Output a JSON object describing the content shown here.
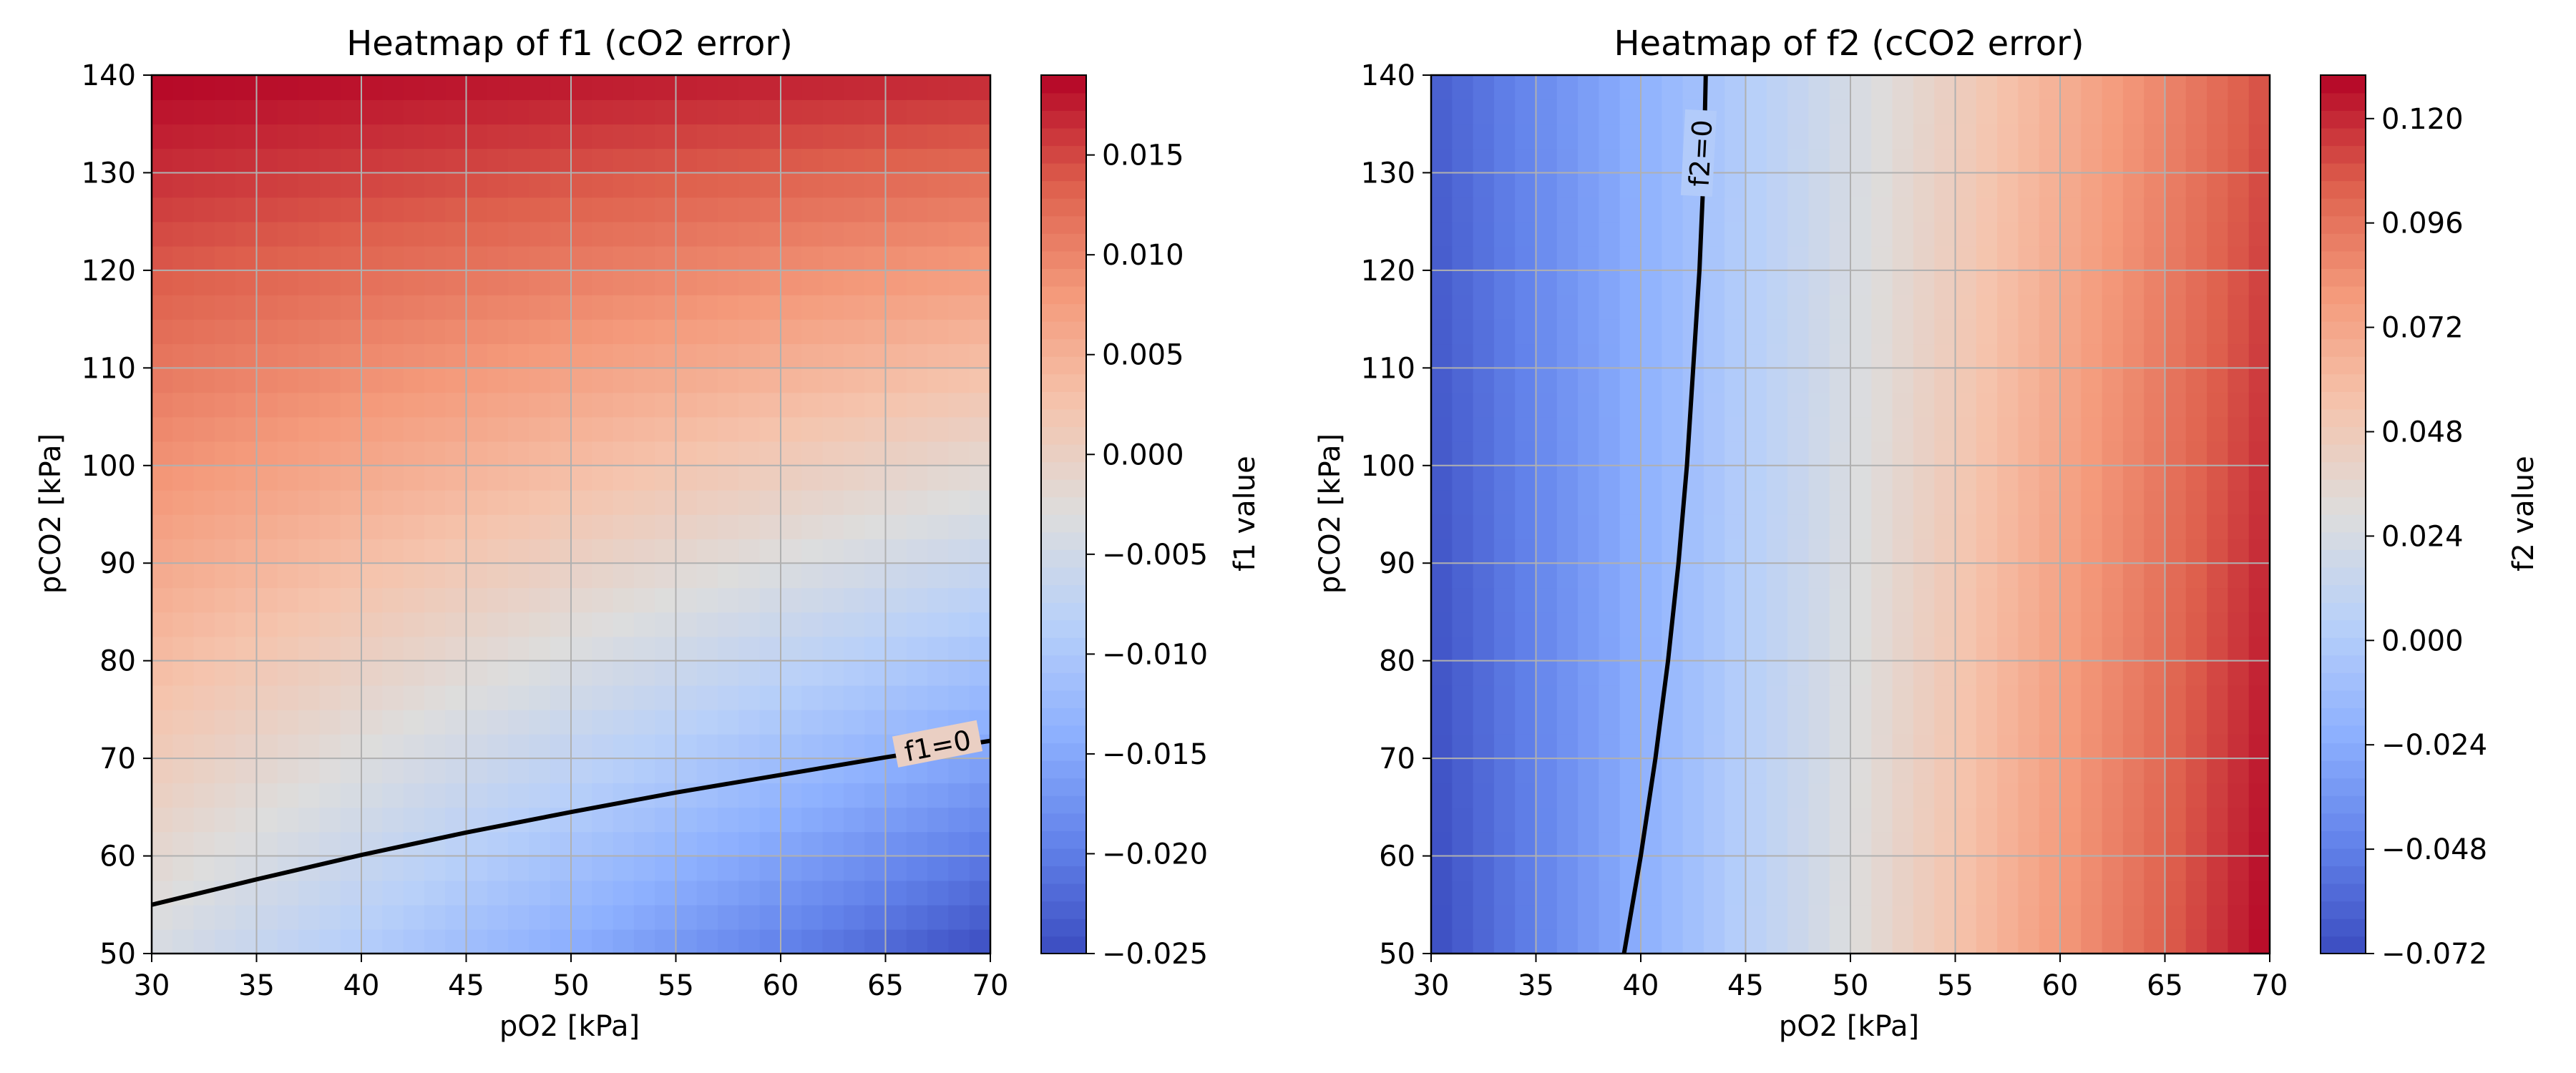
{
  "chart_data": [
    {
      "type": "heatmap",
      "title": "Heatmap of f1 (cO2 error)",
      "xlabel": "pO2 [kPa]",
      "ylabel": "pCO2 [kPa]",
      "xlim": [
        30,
        70
      ],
      "ylim": [
        50,
        140
      ],
      "xticks": [
        30,
        35,
        40,
        45,
        50,
        55,
        60,
        65,
        70
      ],
      "yticks": [
        50,
        60,
        70,
        80,
        90,
        100,
        110,
        120,
        130,
        140
      ],
      "grid": true,
      "colormap": "coolwarm",
      "colorbar": {
        "label": "f1 value",
        "vmin": -0.025,
        "vmax": 0.019,
        "ticks": [
          -0.025,
          -0.02,
          -0.015,
          -0.01,
          -0.005,
          0.0,
          0.005,
          0.01,
          0.015
        ],
        "tick_labels": [
          "−0.025",
          "−0.020",
          "−0.015",
          "−0.010",
          "−0.005",
          "0.000",
          "0.005",
          "0.010",
          "0.015"
        ]
      },
      "field": {
        "corner_values": {
          "x30_y50": -0.004,
          "x70_y50": -0.025,
          "x30_y140": 0.019,
          "x70_y140": 0.017
        }
      },
      "contour": {
        "level": 0,
        "label": "f1=0",
        "points": [
          [
            30,
            55
          ],
          [
            35,
            57.6
          ],
          [
            40,
            60.1
          ],
          [
            45,
            62.4
          ],
          [
            50,
            64.5
          ],
          [
            55,
            66.5
          ],
          [
            60,
            68.3
          ],
          [
            65,
            70.1
          ],
          [
            70,
            71.8
          ]
        ]
      }
    },
    {
      "type": "heatmap",
      "title": "Heatmap of f2 (cCO2 error)",
      "xlabel": "pO2 [kPa]",
      "ylabel": "pCO2 [kPa]",
      "xlim": [
        30,
        70
      ],
      "ylim": [
        50,
        140
      ],
      "xticks": [
        30,
        35,
        40,
        45,
        50,
        55,
        60,
        65,
        70
      ],
      "yticks": [
        50,
        60,
        70,
        80,
        90,
        100,
        110,
        120,
        130,
        140
      ],
      "grid": true,
      "colormap": "coolwarm",
      "colorbar": {
        "label": "f2 value",
        "vmin": -0.072,
        "vmax": 0.13,
        "ticks": [
          -0.072,
          -0.048,
          -0.024,
          0.0,
          0.024,
          0.048,
          0.072,
          0.096,
          0.12
        ],
        "tick_labels": [
          "−0.072",
          "−0.048",
          "−0.024",
          "0.000",
          "0.024",
          "0.048",
          "0.072",
          "0.096",
          "0.120"
        ]
      },
      "field": {
        "corner_values": {
          "x30_y50": -0.072,
          "x70_y50": 0.13,
          "x30_y140": -0.064,
          "x70_y140": 0.11
        }
      },
      "contour": {
        "level": 0,
        "label": "f2=0",
        "points": [
          [
            39.2,
            50
          ],
          [
            40,
            60
          ],
          [
            40.7,
            70
          ],
          [
            41.3,
            80
          ],
          [
            41.8,
            90
          ],
          [
            42.2,
            100
          ],
          [
            42.5,
            110
          ],
          [
            42.8,
            120
          ],
          [
            43.0,
            130
          ],
          [
            43.1,
            140
          ]
        ]
      }
    }
  ]
}
